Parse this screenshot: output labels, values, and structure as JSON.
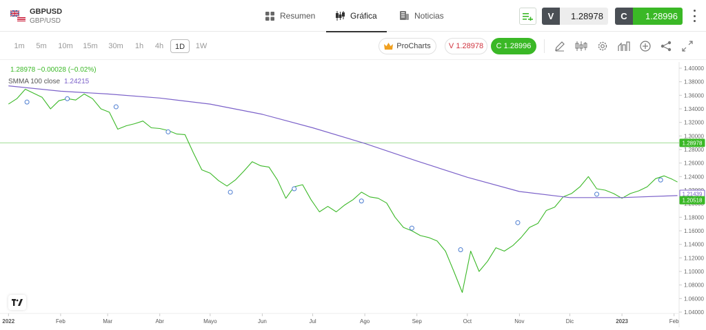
{
  "header": {
    "symbol": "GBPUSD",
    "pair": "GBP/USD",
    "tabs": [
      {
        "label": "Resumen",
        "icon": "overview-grid-icon",
        "active": false
      },
      {
        "label": "Gráfica",
        "icon": "candlestick-icon",
        "active": true
      },
      {
        "label": "Noticias",
        "icon": "news-icon",
        "active": false
      }
    ],
    "sell": {
      "label": "V",
      "value": "1.28978"
    },
    "buy": {
      "label": "C",
      "value": "1.28996"
    }
  },
  "toolbar": {
    "timeframes": [
      "1m",
      "5m",
      "10m",
      "15m",
      "30m",
      "1h",
      "4h",
      "1D",
      "1W"
    ],
    "active_timeframe": "1D",
    "prochart_label": "ProCharts",
    "sell_pill": "V 1.28978",
    "buy_pill": "C 1.28996",
    "tools": [
      "draw-pencil-icon",
      "chart-type-icon",
      "settings-gear-icon",
      "indicators-icon",
      "add-plus-icon",
      "share-icon",
      "fullscreen-icon"
    ]
  },
  "legend": {
    "price_line": "1.28978 −0.00028 (−0.02%)",
    "smma_label": "SMMA 100 close",
    "smma_value": "1.24215"
  },
  "colors": {
    "price": "#3ab826",
    "smma": "#7b61c9",
    "sell_text": "#d0343f",
    "buy_bg": "#3ab826"
  },
  "chart_data": {
    "type": "line",
    "series": [
      {
        "name": "GBPUSD",
        "x": [
          "2022-01-01",
          "2022-01-06",
          "2022-01-11",
          "2022-01-16",
          "2022-01-21",
          "2022-01-26",
          "2022-01-31",
          "2022-02-05",
          "2022-02-10",
          "2022-02-15",
          "2022-02-20",
          "2022-02-25",
          "2022-03-02",
          "2022-03-07",
          "2022-03-12",
          "2022-03-17",
          "2022-03-22",
          "2022-03-27",
          "2022-04-01",
          "2022-04-06",
          "2022-04-11",
          "2022-04-16",
          "2022-04-21",
          "2022-04-26",
          "2022-05-01",
          "2022-05-06",
          "2022-05-11",
          "2022-05-16",
          "2022-05-21",
          "2022-05-26",
          "2022-05-31",
          "2022-06-05",
          "2022-06-10",
          "2022-06-15",
          "2022-06-20",
          "2022-06-25",
          "2022-06-30",
          "2022-07-05",
          "2022-07-10",
          "2022-07-15",
          "2022-07-20",
          "2022-07-25",
          "2022-07-30",
          "2022-08-04",
          "2022-08-09",
          "2022-08-14",
          "2022-08-19",
          "2022-08-24",
          "2022-08-29",
          "2022-09-03",
          "2022-09-08",
          "2022-09-13",
          "2022-09-18",
          "2022-09-23",
          "2022-09-28",
          "2022-10-03",
          "2022-10-08",
          "2022-10-13",
          "2022-10-18",
          "2022-10-23",
          "2022-10-28",
          "2022-11-02",
          "2022-11-07",
          "2022-11-12",
          "2022-11-17",
          "2022-11-22",
          "2022-11-27",
          "2022-12-02",
          "2022-12-07",
          "2022-12-12",
          "2022-12-17",
          "2022-12-22",
          "2022-12-27",
          "2023-01-01",
          "2023-01-06",
          "2023-01-11",
          "2023-01-16",
          "2023-01-21",
          "2023-01-26",
          "2023-01-31",
          "2023-02-03"
        ],
        "y": [
          1.347,
          1.355,
          1.369,
          1.363,
          1.357,
          1.34,
          1.352,
          1.355,
          1.353,
          1.362,
          1.355,
          1.34,
          1.335,
          1.31,
          1.315,
          1.318,
          1.322,
          1.312,
          1.311,
          1.308,
          1.303,
          1.302,
          1.275,
          1.25,
          1.245,
          1.234,
          1.226,
          1.235,
          1.248,
          1.262,
          1.256,
          1.254,
          1.235,
          1.208,
          1.225,
          1.228,
          1.206,
          1.188,
          1.196,
          1.188,
          1.198,
          1.206,
          1.217,
          1.21,
          1.208,
          1.201,
          1.18,
          1.165,
          1.16,
          1.153,
          1.15,
          1.145,
          1.13,
          1.1,
          1.069,
          1.13,
          1.1,
          1.115,
          1.135,
          1.13,
          1.138,
          1.15,
          1.165,
          1.171,
          1.19,
          1.195,
          1.21,
          1.215,
          1.225,
          1.24,
          1.222,
          1.22,
          1.215,
          1.208,
          1.215,
          1.219,
          1.225,
          1.237,
          1.241,
          1.236,
          1.232
        ]
      },
      {
        "name": "SMMA 100 close",
        "x": [
          "2022-01-01",
          "2022-02-01",
          "2022-03-01",
          "2022-04-01",
          "2022-05-01",
          "2022-06-01",
          "2022-07-01",
          "2022-08-01",
          "2022-09-01",
          "2022-10-01",
          "2022-11-01",
          "2022-12-01",
          "2023-01-01",
          "2023-02-03"
        ],
        "y": [
          1.374,
          1.366,
          1.362,
          1.356,
          1.347,
          1.332,
          1.312,
          1.289,
          1.263,
          1.239,
          1.218,
          1.209,
          1.209,
          1.212
        ]
      }
    ],
    "x_tick_labels": [
      "2022",
      "Feb",
      "Mar",
      "Abr",
      "Mayo",
      "Jun",
      "Jul",
      "Ago",
      "Sep",
      "Oct",
      "Nov",
      "Dic",
      "2023",
      "Feb"
    ],
    "x_tick_dates": [
      "2022-01-01",
      "2022-02-01",
      "2022-03-01",
      "2022-04-01",
      "2022-05-01",
      "2022-06-01",
      "2022-07-01",
      "2022-08-01",
      "2022-09-01",
      "2022-10-01",
      "2022-11-01",
      "2022-12-01",
      "2023-01-01",
      "2023-02-01"
    ],
    "y_tick_labels": [
      "1.40000",
      "1.38000",
      "1.36000",
      "1.34000",
      "1.32000",
      "1.30000",
      "1.28000",
      "1.26000",
      "1.24000",
      "1.22000",
      "1.20000",
      "1.18000",
      "1.16000",
      "1.14000",
      "1.12000",
      "1.10000",
      "1.08000",
      "1.06000",
      "1.04000"
    ],
    "ylim": [
      1.04,
      1.4
    ],
    "xlim": [
      "2021-12-29",
      "2023-02-04"
    ],
    "price_markers": [
      {
        "label": "1.28978",
        "value": 1.28978,
        "color": "#3ab826"
      },
      {
        "label": "1.21439",
        "value": 1.21439,
        "color": "#7b61c9"
      },
      {
        "label": "1.20518",
        "value": 1.20518,
        "color": "#3ab826"
      }
    ],
    "event_markers": [
      {
        "x": "2022-01-12",
        "y": 1.35
      },
      {
        "x": "2022-02-05",
        "y": 1.355
      },
      {
        "x": "2022-03-06",
        "y": 1.343
      },
      {
        "x": "2022-04-06",
        "y": 1.306
      },
      {
        "x": "2022-05-13",
        "y": 1.217
      },
      {
        "x": "2022-06-20",
        "y": 1.222
      },
      {
        "x": "2022-07-30",
        "y": 1.204
      },
      {
        "x": "2022-08-29",
        "y": 1.164
      },
      {
        "x": "2022-09-27",
        "y": 1.132
      },
      {
        "x": "2022-10-31",
        "y": 1.172
      },
      {
        "x": "2022-12-17",
        "y": 1.214
      },
      {
        "x": "2023-01-24",
        "y": 1.235
      }
    ],
    "grid": false
  }
}
